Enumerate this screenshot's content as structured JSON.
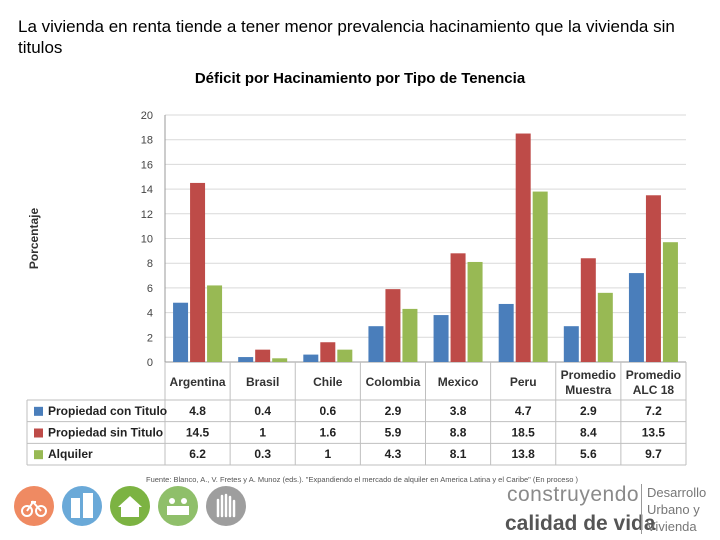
{
  "headline": "La vivienda en renta tiende a tener menor prevalencia hacinamiento que la vivienda sin titulos",
  "source": "Fuente: Blanco, A., V. Fretes y A. Munoz (eds.). \"Expandiendo el mercado de alquiler en America Latina y el Caribe\" (En proceso  )",
  "logo": {
    "line1": "construyendo",
    "line2": "calidad de vida",
    "right": [
      "Desarrollo",
      "Urbano y",
      "Vivienda"
    ]
  },
  "icons": [
    "bicycle-icon",
    "buildings-icon",
    "house-icon",
    "community-icon",
    "hands-icon"
  ],
  "chart_data": {
    "type": "bar",
    "title": "Déficit por Hacinamiento por Tipo de Tenencia",
    "ylabel": "Porcentaje",
    "xlabel": "",
    "ylim": [
      0,
      20
    ],
    "yticks": [
      0,
      2,
      4,
      6,
      8,
      10,
      12,
      14,
      16,
      18,
      20
    ],
    "grid": true,
    "categories": [
      "Argentina",
      "Brasil",
      "Chile",
      "Colombia",
      "Mexico",
      "Peru",
      "Promedio Muestra",
      "Promedio ALC 18"
    ],
    "series": [
      {
        "name": "Propiedad con Titulo",
        "color": "#4a7ebb",
        "values": [
          4.8,
          0.4,
          0.6,
          2.9,
          3.8,
          4.7,
          2.9,
          7.2
        ]
      },
      {
        "name": "Propiedad sin Titulo",
        "color": "#be4b48",
        "values": [
          14.5,
          1,
          1.6,
          5.9,
          8.8,
          18.5,
          8.4,
          13.5
        ]
      },
      {
        "name": "Alquiler",
        "color": "#98b954",
        "values": [
          6.2,
          0.3,
          1,
          4.3,
          8.1,
          13.8,
          5.6,
          9.7
        ]
      }
    ],
    "table_labels": [
      [
        "4.8",
        "0.4",
        "0.6",
        "2.9",
        "3.8",
        "4.7",
        "2.9",
        "7.2"
      ],
      [
        "14.5",
        "1",
        "1.6",
        "5.9",
        "8.8",
        "18.5",
        "8.4",
        "13.5"
      ],
      [
        "6.2",
        "0.3",
        "1",
        "4.3",
        "8.1",
        "13.8",
        "5.6",
        "9.7"
      ]
    ]
  }
}
